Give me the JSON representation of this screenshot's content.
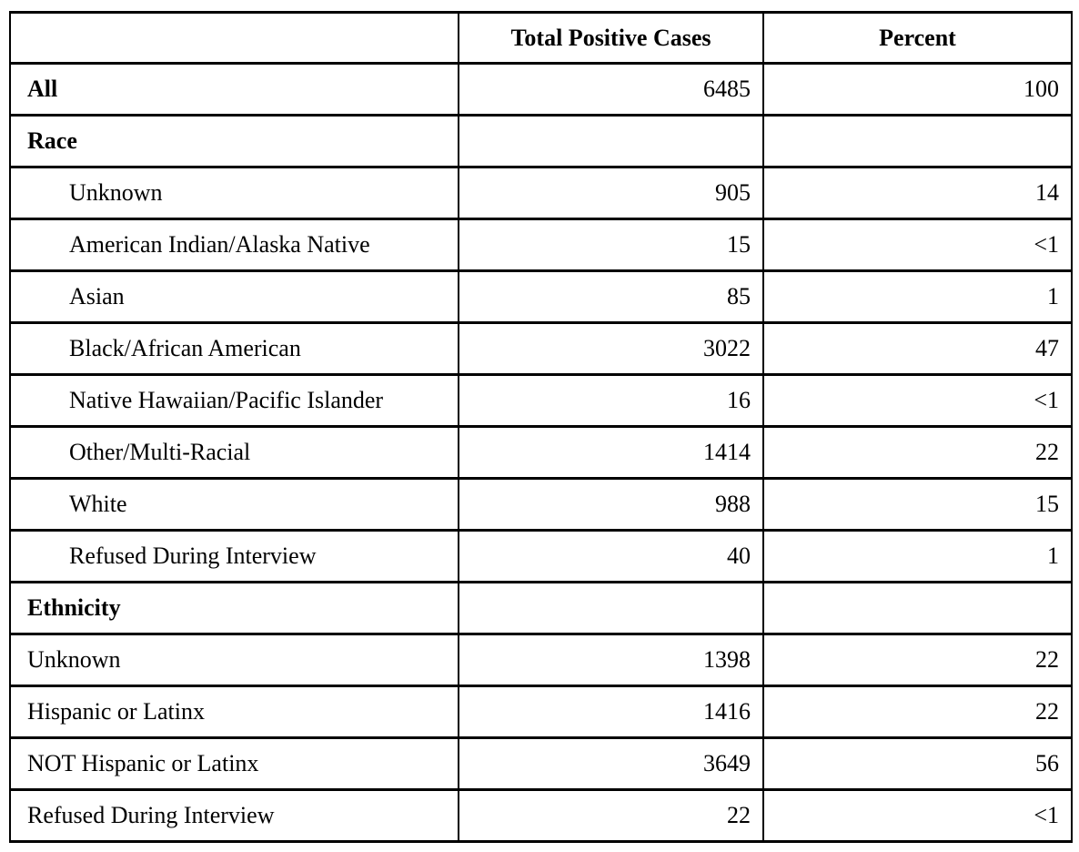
{
  "table": {
    "columns": [
      "",
      "Total Positive Cases",
      "Percent"
    ],
    "rows": [
      {
        "label": "All",
        "cases": "6485",
        "percent": "100"
      },
      {
        "label": "Race",
        "cases": "",
        "percent": ""
      },
      {
        "label": "Unknown",
        "cases": "905",
        "percent": "14"
      },
      {
        "label": "American Indian/Alaska Native",
        "cases": "15",
        "percent": "<1"
      },
      {
        "label": "Asian",
        "cases": "85",
        "percent": "1"
      },
      {
        "label": "Black/African American",
        "cases": "3022",
        "percent": "47"
      },
      {
        "label": "Native Hawaiian/Pacific Islander",
        "cases": "16",
        "percent": "<1"
      },
      {
        "label": "Other/Multi-Racial",
        "cases": "1414",
        "percent": "22"
      },
      {
        "label": "White",
        "cases": "988",
        "percent": "15"
      },
      {
        "label": "Refused During Interview",
        "cases": "40",
        "percent": "1"
      },
      {
        "label": "Ethnicity",
        "cases": "",
        "percent": ""
      },
      {
        "label": "Unknown",
        "cases": "1398",
        "percent": "22"
      },
      {
        "label": "Hispanic or Latinx",
        "cases": "1416",
        "percent": "22"
      },
      {
        "label": "NOT Hispanic or Latinx",
        "cases": "3649",
        "percent": "56"
      },
      {
        "label": "Refused During Interview",
        "cases": "22",
        "percent": "<1"
      }
    ]
  }
}
